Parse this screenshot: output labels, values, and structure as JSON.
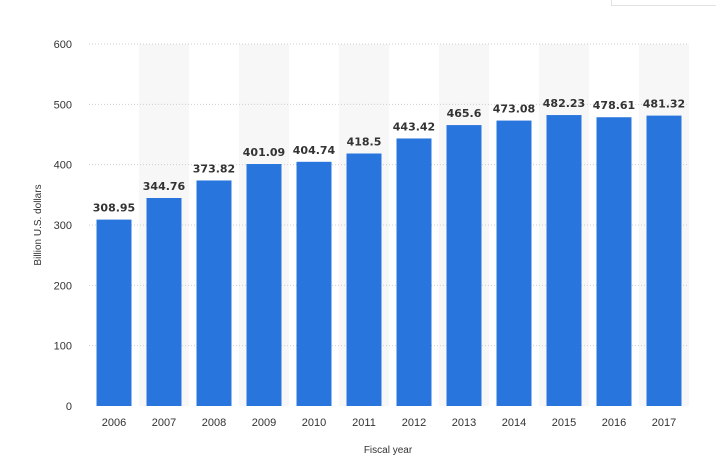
{
  "chart_data": {
    "type": "bar",
    "title": "",
    "xlabel": "Fiscal year",
    "ylabel": "Billion U.S. dollars",
    "ylim": [
      0,
      600
    ],
    "yticks": [
      "0",
      "100",
      "200",
      "300",
      "400",
      "500",
      "600"
    ],
    "grid": true,
    "alternating_band_fill": true,
    "categories": [
      "2006",
      "2007",
      "2008",
      "2009",
      "2010",
      "2011",
      "2012",
      "2013",
      "2014",
      "2015",
      "2016",
      "2017"
    ],
    "values": [
      308.95,
      344.76,
      373.82,
      401.09,
      404.74,
      418.5,
      443.42,
      465.6,
      473.08,
      482.23,
      478.61,
      481.32
    ],
    "value_labels": [
      "308.95",
      "344.76",
      "373.82",
      "401.09",
      "404.74",
      "418.5",
      "443.42",
      "465.6",
      "473.08",
      "482.23",
      "478.61",
      "481.32"
    ],
    "colors": {
      "bar": "#2876dd",
      "gridline": "#cfcfcf",
      "band": "#f7f7f7",
      "text": "#333333"
    }
  }
}
